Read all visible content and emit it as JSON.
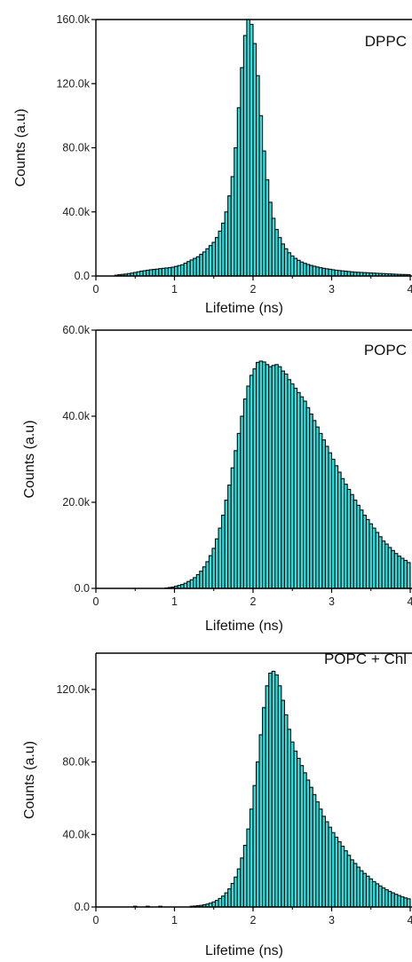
{
  "colors": {
    "bar_fill": "#2ee0df",
    "bar_edge": "#0a0a0a",
    "axis": "#000000"
  },
  "chart_data": [
    {
      "type": "bar",
      "title": "",
      "annotation": "DPPC",
      "xlabel": "Lifetime (ns)",
      "ylabel": "Counts (a.u)",
      "xlim": [
        0,
        4
      ],
      "ylim": [
        0,
        160000
      ],
      "xticks": [
        0,
        1,
        2,
        3,
        4
      ],
      "xtick_labels": [
        "0",
        "1",
        "2",
        "3",
        "4"
      ],
      "yticks": [
        0,
        40000,
        80000,
        120000,
        160000
      ],
      "ytick_labels": [
        "0.0",
        "40.0k",
        "80.0k",
        "120.0k",
        "160.0k"
      ],
      "bin_width": 0.04,
      "x": [
        0.26,
        0.3,
        0.34,
        0.38,
        0.42,
        0.46,
        0.5,
        0.54,
        0.58,
        0.62,
        0.66,
        0.7,
        0.74,
        0.78,
        0.82,
        0.86,
        0.9,
        0.94,
        0.98,
        1.02,
        1.06,
        1.1,
        1.14,
        1.18,
        1.22,
        1.26,
        1.3,
        1.34,
        1.38,
        1.42,
        1.46,
        1.5,
        1.54,
        1.58,
        1.62,
        1.66,
        1.7,
        1.74,
        1.78,
        1.82,
        1.86,
        1.9,
        1.94,
        1.98,
        2.02,
        2.06,
        2.1,
        2.14,
        2.18,
        2.22,
        2.26,
        2.3,
        2.34,
        2.38,
        2.42,
        2.46,
        2.5,
        2.54,
        2.58,
        2.62,
        2.66,
        2.7,
        2.74,
        2.78,
        2.82,
        2.86,
        2.9,
        2.94,
        2.98,
        3.02,
        3.06,
        3.1,
        3.14,
        3.18,
        3.22,
        3.26,
        3.3,
        3.34,
        3.38,
        3.42,
        3.46,
        3.5,
        3.54,
        3.58,
        3.62,
        3.66,
        3.7,
        3.74,
        3.78,
        3.82,
        3.86,
        3.9,
        3.94,
        3.98
      ],
      "values": [
        500,
        800,
        1000,
        1200,
        1500,
        1800,
        2200,
        2600,
        3000,
        3300,
        3600,
        3900,
        4100,
        4300,
        4600,
        4800,
        5000,
        5200,
        5500,
        6000,
        6500,
        7000,
        8000,
        9000,
        10000,
        11000,
        12000,
        13500,
        15000,
        17000,
        19000,
        21000,
        24000,
        28000,
        33000,
        40000,
        50000,
        62000,
        80000,
        105000,
        130000,
        150000,
        160000,
        157000,
        145000,
        125000,
        100000,
        78000,
        60000,
        46000,
        36000,
        29000,
        24000,
        20000,
        17000,
        14500,
        12500,
        11000,
        9800,
        8700,
        7900,
        7200,
        6600,
        6100,
        5600,
        5200,
        4800,
        4500,
        4200,
        3900,
        3600,
        3400,
        3200,
        3000,
        2800,
        2600,
        2400,
        2300,
        2200,
        2100,
        2000,
        1900,
        1800,
        1700,
        1600,
        1500,
        1400,
        1300,
        1200,
        1100,
        1000,
        950,
        900,
        850
      ]
    },
    {
      "type": "bar",
      "title": "",
      "annotation": "POPC",
      "xlabel": "Lifetime (ns)",
      "ylabel": "Counts (a.u)",
      "xlim": [
        0,
        4
      ],
      "ylim": [
        0,
        60000
      ],
      "xticks": [
        0,
        1,
        2,
        3,
        4
      ],
      "xtick_labels": [
        "0",
        "1",
        "2",
        "3",
        "4"
      ],
      "yticks": [
        0,
        20000,
        40000,
        60000
      ],
      "ytick_labels": [
        "0.0",
        "20.0k",
        "40.0k",
        "60.0k"
      ],
      "bin_width": 0.04,
      "x": [
        0.9,
        0.94,
        0.98,
        1.02,
        1.06,
        1.1,
        1.14,
        1.18,
        1.22,
        1.26,
        1.3,
        1.34,
        1.38,
        1.42,
        1.46,
        1.5,
        1.54,
        1.58,
        1.62,
        1.66,
        1.7,
        1.74,
        1.78,
        1.82,
        1.86,
        1.9,
        1.94,
        1.98,
        2.02,
        2.06,
        2.1,
        2.14,
        2.18,
        2.22,
        2.26,
        2.3,
        2.34,
        2.38,
        2.42,
        2.46,
        2.5,
        2.54,
        2.58,
        2.62,
        2.66,
        2.7,
        2.74,
        2.78,
        2.82,
        2.86,
        2.9,
        2.94,
        2.98,
        3.02,
        3.06,
        3.1,
        3.14,
        3.18,
        3.22,
        3.26,
        3.3,
        3.34,
        3.38,
        3.42,
        3.46,
        3.5,
        3.54,
        3.58,
        3.62,
        3.66,
        3.7,
        3.74,
        3.78,
        3.82,
        3.86,
        3.9,
        3.94,
        3.98
      ],
      "values": [
        100,
        200,
        300,
        500,
        700,
        900,
        1200,
        1600,
        2000,
        2500,
        3200,
        4000,
        5000,
        6200,
        7600,
        9300,
        11500,
        14000,
        17000,
        20500,
        24000,
        28000,
        32000,
        36000,
        40000,
        44000,
        47000,
        49500,
        51000,
        52500,
        52800,
        52600,
        52000,
        51500,
        51800,
        52000,
        51500,
        50500,
        49800,
        48500,
        47500,
        46500,
        45500,
        44500,
        43500,
        42000,
        40500,
        39000,
        37500,
        36000,
        34500,
        33000,
        31500,
        30000,
        28500,
        27000,
        25500,
        24200,
        23000,
        21800,
        20500,
        19300,
        18200,
        17000,
        16000,
        15000,
        14000,
        13000,
        12000,
        11000,
        10300,
        9500,
        8800,
        8100,
        7500,
        7000,
        6500,
        6000
      ]
    },
    {
      "type": "bar",
      "title": "",
      "annotation": "POPC + Chl",
      "xlabel": "Lifetime (ns)",
      "ylabel": "Counts (a.u)",
      "xlim": [
        0,
        4
      ],
      "ylim": [
        0,
        140000
      ],
      "xticks": [
        0,
        1,
        2,
        3,
        4
      ],
      "xtick_labels": [
        "0",
        "1",
        "2",
        "3",
        "4"
      ],
      "yticks": [
        0,
        40000,
        80000,
        120000
      ],
      "ytick_labels": [
        "0.0",
        "40.0k",
        "80.0k",
        "120.0k"
      ],
      "bin_width": 0.04,
      "x": [
        0.5,
        0.66,
        0.82,
        1.22,
        1.26,
        1.3,
        1.34,
        1.38,
        1.42,
        1.46,
        1.5,
        1.54,
        1.58,
        1.62,
        1.66,
        1.7,
        1.74,
        1.78,
        1.82,
        1.86,
        1.9,
        1.94,
        1.98,
        2.02,
        2.06,
        2.1,
        2.14,
        2.18,
        2.22,
        2.26,
        2.3,
        2.34,
        2.38,
        2.42,
        2.46,
        2.5,
        2.54,
        2.58,
        2.62,
        2.66,
        2.7,
        2.74,
        2.78,
        2.82,
        2.86,
        2.9,
        2.94,
        2.98,
        3.02,
        3.06,
        3.1,
        3.14,
        3.18,
        3.22,
        3.26,
        3.3,
        3.34,
        3.38,
        3.42,
        3.46,
        3.5,
        3.54,
        3.58,
        3.62,
        3.66,
        3.7,
        3.74,
        3.78,
        3.82,
        3.86,
        3.9,
        3.94,
        3.98
      ],
      "values": [
        400,
        400,
        400,
        400,
        500,
        700,
        900,
        1200,
        1600,
        2100,
        2800,
        3600,
        4700,
        6000,
        7800,
        10000,
        13000,
        16500,
        21000,
        27000,
        34000,
        43000,
        54000,
        67000,
        80000,
        95000,
        110000,
        122000,
        129000,
        130000,
        128000,
        122000,
        114000,
        106000,
        98000,
        91000,
        86000,
        82000,
        78000,
        74000,
        70000,
        66000,
        62000,
        58000,
        54000,
        50000,
        47000,
        44000,
        41000,
        38500,
        36000,
        33500,
        31000,
        28500,
        26000,
        24000,
        22000,
        20000,
        18500,
        17000,
        15500,
        14000,
        12800,
        11600,
        10500,
        9500,
        8600,
        7800,
        7000,
        6300,
        5600,
        5000,
        4500
      ]
    }
  ]
}
